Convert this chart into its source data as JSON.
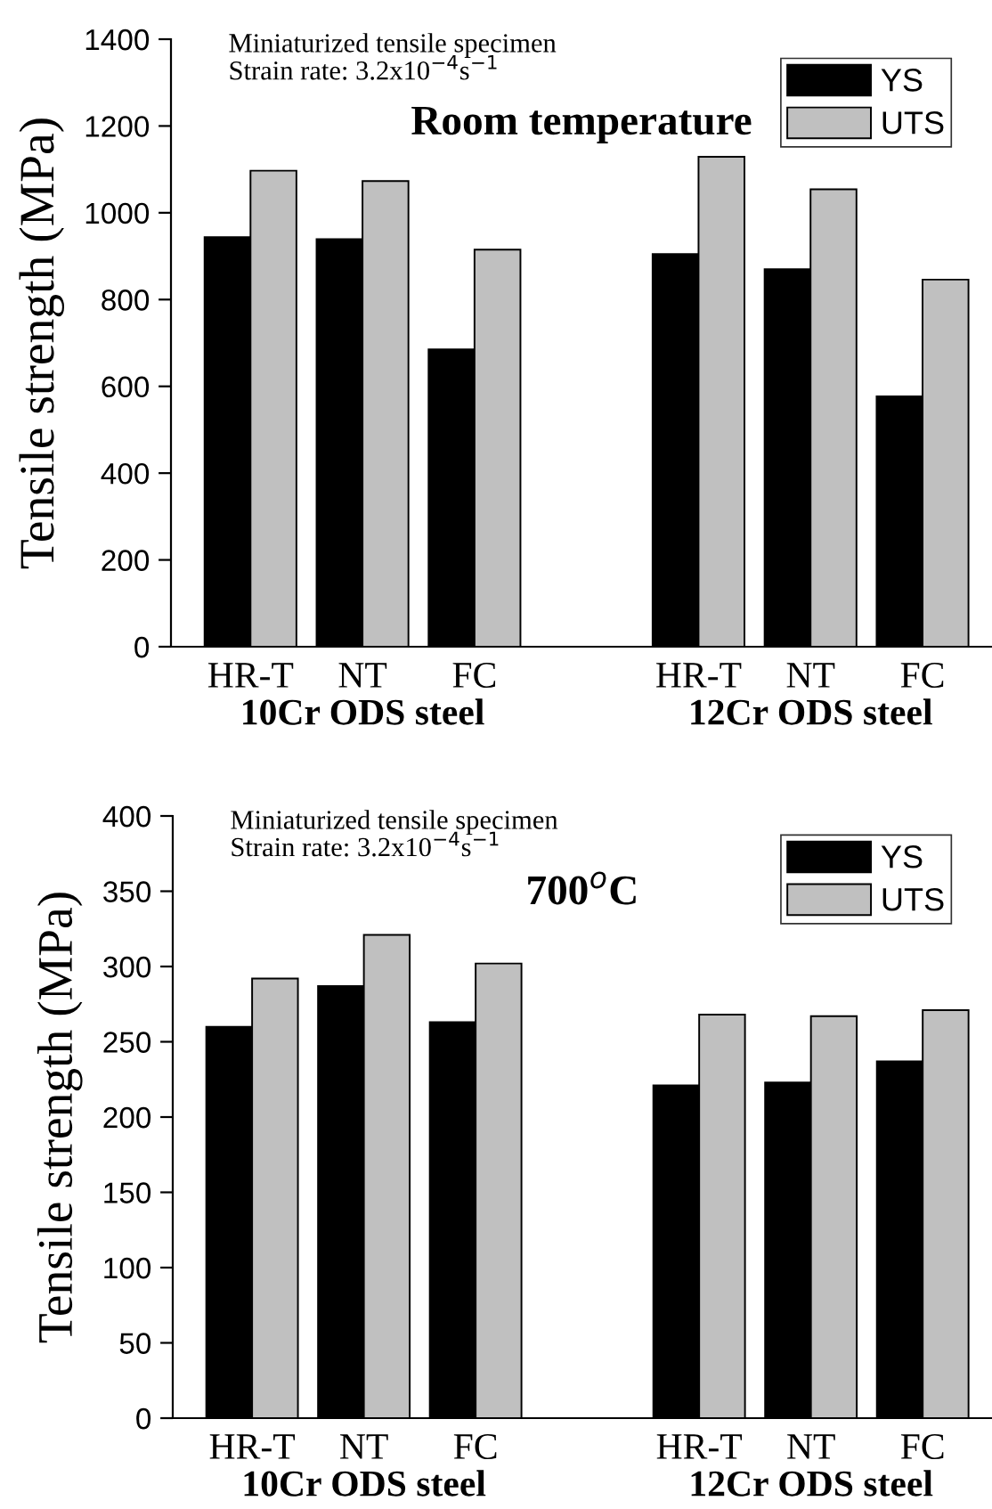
{
  "chart_data": [
    {
      "type": "bar",
      "title": "Room temperature",
      "ylabel": "Tensile strength (MPa)",
      "annotations": [
        "Miniaturized tensile specimen",
        "Strain rate: 3.2x10$^{−4}$s$^{−1}$",
        "10Cr ODS steel",
        "12Cr ODS steel"
      ],
      "categories": [
        "HR-T",
        "NT",
        "FC",
        null,
        "HR-T",
        "NT",
        "FC"
      ],
      "series": [
        {
          "name": "YS",
          "color": "#000000",
          "values": [
            944,
            939,
            685,
            null,
            905,
            870,
            577
          ]
        },
        {
          "name": "UTS",
          "color": "#c0c0c0",
          "values": [
            1097,
            1073,
            915,
            null,
            1129,
            1054,
            846
          ]
        }
      ],
      "ylim": [
        0,
        1400
      ],
      "yticks": [
        0,
        200,
        400,
        600,
        800,
        1000,
        1200,
        1400
      ],
      "grid": false,
      "legend": "top right"
    },
    {
      "type": "bar",
      "title": "700$^{o}$C",
      "ylabel": "Tensile strength (MPa)",
      "annotations": [
        "Miniaturized tensile specimen",
        "Strain rate: 3.2x10$^{−4}$s$^{−1}$",
        "10Cr ODS steel",
        "12Cr ODS steel"
      ],
      "categories": [
        "HR-T",
        "NT",
        "FC",
        null,
        "HR-T",
        "NT",
        "FC"
      ],
      "series": [
        {
          "name": "YS",
          "color": "#000000",
          "values": [
            260,
            287,
            263,
            null,
            221,
            223,
            237
          ]
        },
        {
          "name": "UTS",
          "color": "#c0c0c0",
          "values": [
            292,
            321,
            302,
            null,
            268,
            267,
            271
          ]
        }
      ],
      "ylim": [
        0,
        400
      ],
      "yticks": [
        0,
        50,
        100,
        150,
        200,
        250,
        300,
        350,
        400
      ],
      "grid": false,
      "legend": "top right"
    }
  ]
}
